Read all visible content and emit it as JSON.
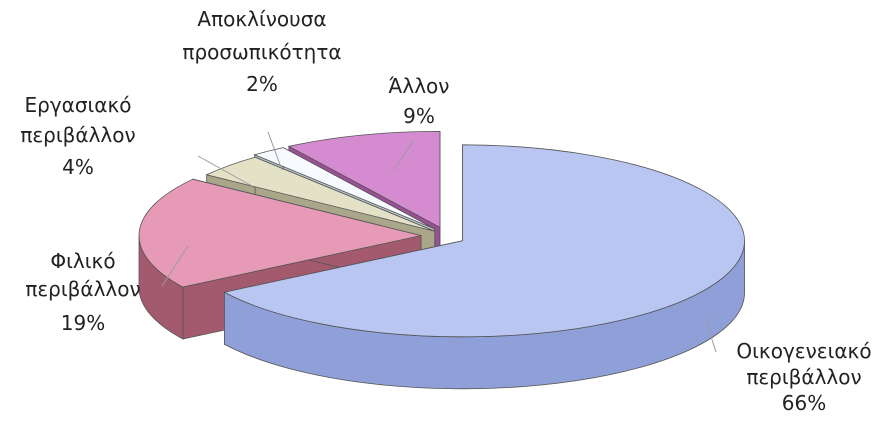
{
  "chart_data": {
    "type": "pie",
    "style": "3d-exploded",
    "slices": [
      {
        "label": "Οικογενειακό περιβάλλον",
        "value": 66,
        "value_label": "66%",
        "color": "#b9c6f2",
        "side_color": "#8f9fd8"
      },
      {
        "label": "Φιλικό περιβάλλον",
        "value": 19,
        "value_label": "19%",
        "color": "#e79ab6",
        "side_color": "#a45a6e"
      },
      {
        "label": "Εργασιακό περιβάλλον",
        "value": 4,
        "value_label": "4%",
        "color": "#e4e2c6",
        "side_color": "#a9a68a"
      },
      {
        "label": "Αποκλίνουσα προσωπικότητα",
        "value": 2,
        "value_label": "2%",
        "color": "#f7fbff",
        "side_color": "#b7c3cc"
      },
      {
        "label": "Άλλον",
        "value": 9,
        "value_label": "9%",
        "color": "#d48bd0",
        "side_color": "#9a4f96"
      }
    ]
  },
  "labels": {
    "family": {
      "line1": "Οικογενειακό",
      "line2": "περιβάλλον",
      "pct": "66%"
    },
    "friends": {
      "line1": "Φιλικό",
      "line2": "περιβάλλον",
      "pct": "19%"
    },
    "work": {
      "line1": "Εργασιακό",
      "line2": "περιβάλλον",
      "pct": "4%"
    },
    "deviant": {
      "line1": "Αποκλίνουσα",
      "line2": "προσωπικότητα",
      "pct": "2%"
    },
    "other": {
      "line1": "Άλλον",
      "pct": "9%"
    }
  }
}
